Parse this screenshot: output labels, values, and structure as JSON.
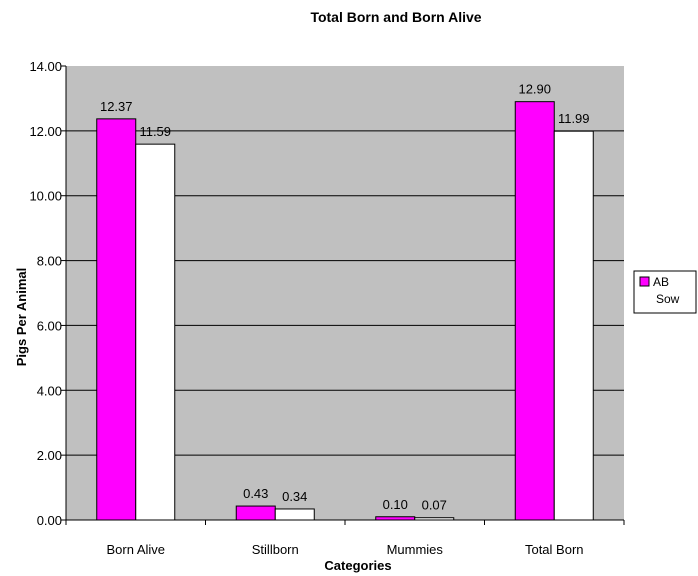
{
  "chart_data": {
    "type": "bar",
    "title": "Total Born and Born Alive",
    "xlabel": "Categories",
    "ylabel": "Pigs Per Animal",
    "categories": [
      "Born Alive",
      "Stillborn",
      "Mummies",
      "Total Born"
    ],
    "series": [
      {
        "name": "AB",
        "values": [
          12.37,
          0.43,
          0.1,
          12.9
        ],
        "labels": [
          "12.37",
          "0.43",
          "0.10",
          "12.90"
        ],
        "color": "#ff00ff"
      },
      {
        "name": "Sow",
        "values": [
          11.59,
          0.34,
          0.07,
          11.99
        ],
        "labels": [
          "11.59",
          "0.34",
          "0.07",
          "11.99"
        ],
        "color": "#ffffff"
      }
    ],
    "ylim": [
      0,
      14
    ],
    "yticks": [
      "0.00",
      "2.00",
      "4.00",
      "6.00",
      "8.00",
      "10.00",
      "12.00",
      "14.00"
    ],
    "ytick_values": [
      0,
      2,
      4,
      6,
      8,
      10,
      12,
      14
    ],
    "grid": true,
    "plot_background": "#c0c0c0",
    "legend_position": "right"
  }
}
